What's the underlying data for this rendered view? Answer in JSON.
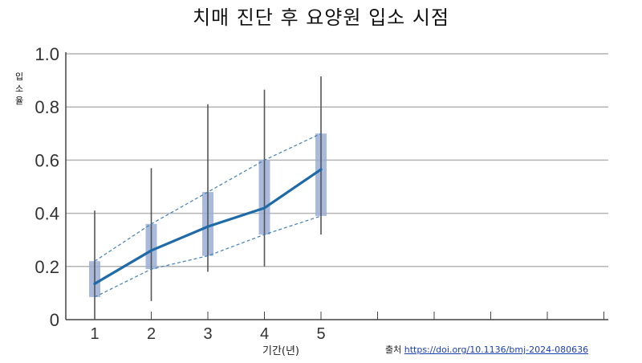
{
  "chart_data": {
    "type": "line",
    "title": "치매 진단 후 요양원 입소 시점",
    "ylabel": "입소율",
    "xlabel": "기간(년)",
    "x": [
      1,
      2,
      3,
      4,
      5
    ],
    "ylim": [
      0,
      1.0
    ],
    "yticks": [
      "0",
      "0.2",
      "0.4",
      "0.6",
      "0.8",
      "1.0"
    ],
    "xticks": [
      "1",
      "2",
      "3",
      "4",
      "5"
    ],
    "grid": "horizontal",
    "series": [
      {
        "values": [
          0.135,
          0.26,
          0.35,
          0.42,
          0.565
        ],
        "color": "#1f6aa8"
      }
    ],
    "ci_dashed_upper": [
      0.22,
      0.36,
      0.48,
      0.6,
      0.7
    ],
    "ci_dashed_lower": [
      0.085,
      0.19,
      0.24,
      0.32,
      0.39
    ],
    "box_ranges": [
      [
        0.085,
        0.22
      ],
      [
        0.19,
        0.36
      ],
      [
        0.24,
        0.48
      ],
      [
        0.32,
        0.6
      ],
      [
        0.39,
        0.7
      ]
    ],
    "whiskers": [
      [
        0.0,
        0.41
      ],
      [
        0.07,
        0.57
      ],
      [
        0.18,
        0.81
      ],
      [
        0.2,
        0.865
      ],
      [
        0.32,
        0.915
      ]
    ],
    "colors": {
      "line": "#1f6aa8",
      "box": "#9aaed6",
      "whisker": "#555555",
      "dashed": "#3f7fb6",
      "grid": "#b4b4b4"
    }
  },
  "source": {
    "prefix": "출처",
    "url_text": "https://doi.org/10.1136/bmj-2024-080636"
  }
}
